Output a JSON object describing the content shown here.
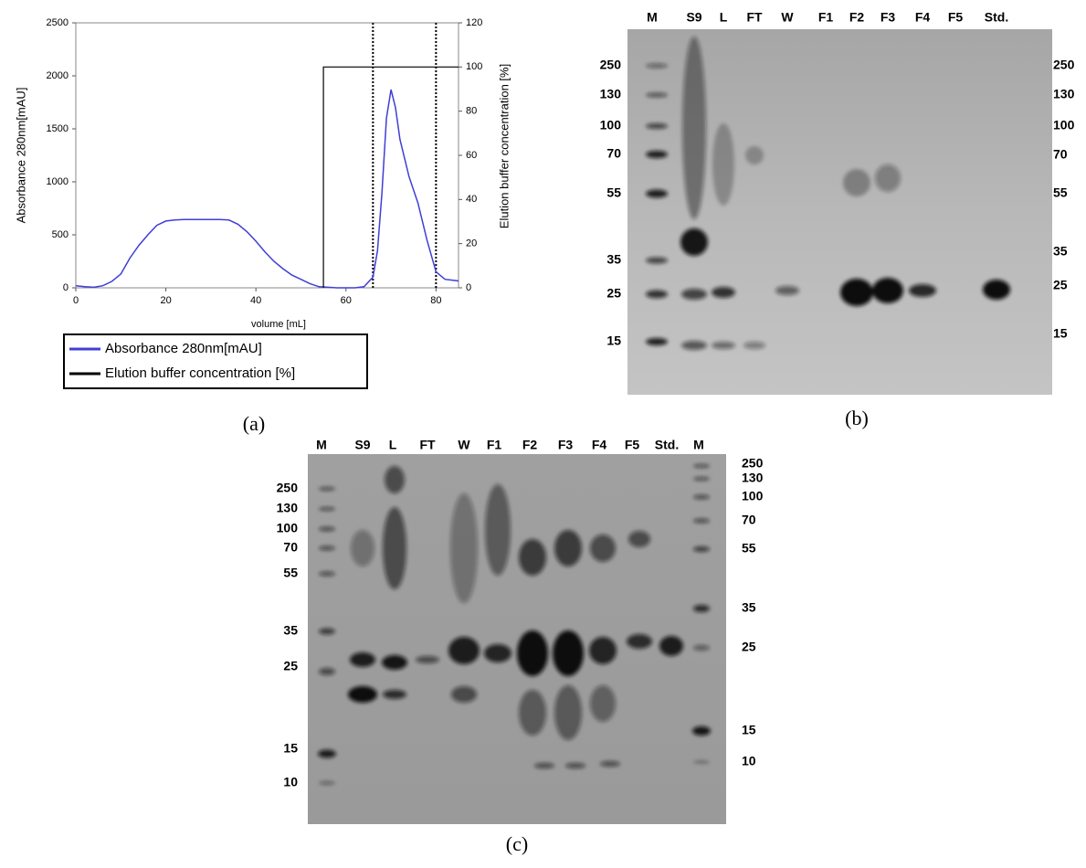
{
  "chart_data": {
    "type": "line",
    "xlabel": "volume [mL]",
    "ylabel": "Absorbance 280nm[mAU]",
    "y2label": "Elution buffer concentration [%]",
    "panel_label": "(a)",
    "xlim": [
      0,
      85
    ],
    "xticks": [
      0,
      20,
      40,
      60,
      80
    ],
    "ylim": [
      0,
      2500
    ],
    "yticks": [
      0,
      500,
      1000,
      1500,
      2000,
      2500
    ],
    "y2lim": [
      0,
      120
    ],
    "y2ticks": [
      0,
      20,
      40,
      60,
      80,
      100,
      120
    ],
    "vlines": [
      66,
      80
    ],
    "series": [
      {
        "name": "Absorbance 280nm[mAU]",
        "color": "#3f3fd6",
        "x": [
          0,
          2,
          4,
          6,
          8,
          10,
          12,
          14,
          16,
          18,
          20,
          22,
          24,
          26,
          28,
          30,
          32,
          34,
          36,
          38,
          40,
          42,
          44,
          46,
          48,
          50,
          52,
          54,
          56,
          58,
          60,
          62,
          64,
          66,
          67,
          68,
          69,
          70,
          71,
          72,
          74,
          76,
          78,
          80,
          82,
          84,
          85
        ],
        "values": [
          20,
          10,
          5,
          20,
          60,
          130,
          280,
          400,
          500,
          590,
          630,
          640,
          645,
          645,
          645,
          645,
          645,
          640,
          600,
          530,
          440,
          340,
          250,
          180,
          120,
          80,
          40,
          10,
          5,
          0,
          0,
          0,
          10,
          100,
          350,
          900,
          1600,
          1870,
          1700,
          1400,
          1050,
          800,
          450,
          150,
          80,
          70,
          65
        ]
      },
      {
        "name": "Elution buffer concentration [%]",
        "color": "#000000",
        "axis": "y2",
        "x": [
          55,
          55,
          85
        ],
        "values": [
          0,
          100,
          100
        ]
      }
    ]
  },
  "gels": [
    {
      "panel_label": "(b)",
      "lanes": [
        "M",
        "S9",
        "L",
        "FT",
        "W",
        "F1",
        "F2",
        "F3",
        "F4",
        "F5",
        "Std."
      ],
      "left_markers": [
        250,
        130,
        100,
        70,
        55,
        35,
        25,
        15
      ],
      "right_markers": [
        250,
        130,
        100,
        70,
        55,
        35,
        25,
        15
      ]
    },
    {
      "panel_label": "(c)",
      "lanes": [
        "M",
        "S9",
        "L",
        "FT",
        "W",
        "F1",
        "F2",
        "F3",
        "F4",
        "F5",
        "Std.",
        "M"
      ],
      "left_markers": [
        250,
        130,
        100,
        70,
        55,
        35,
        25,
        15,
        10
      ],
      "right_markers": [
        250,
        130,
        100,
        70,
        55,
        35,
        25,
        15,
        10
      ]
    }
  ]
}
